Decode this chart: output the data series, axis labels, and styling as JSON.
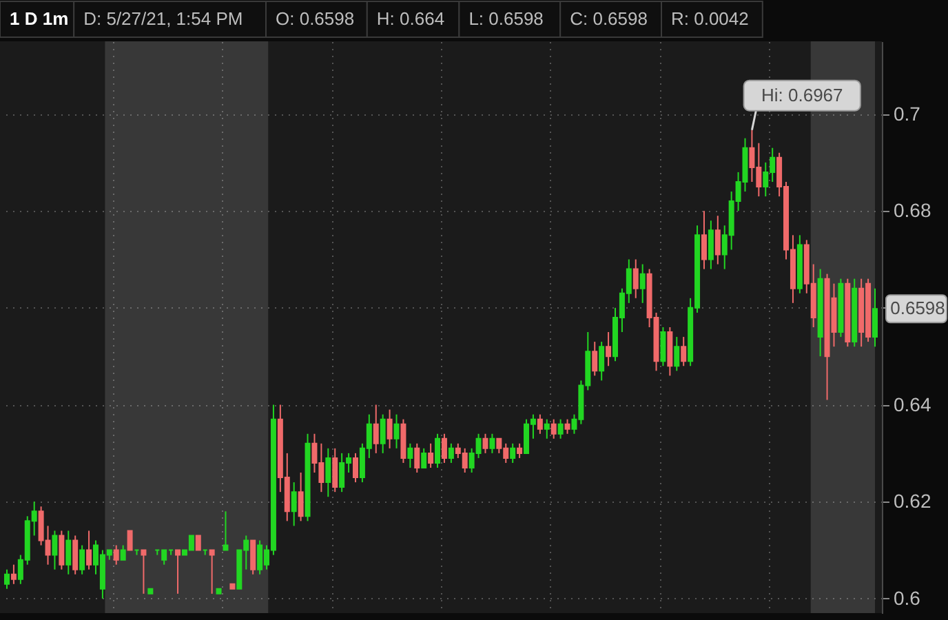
{
  "chart_data": {
    "type": "candlestick",
    "title": "1 D 1m",
    "annotations": [
      "D: 5/27/21, 1:54 PM",
      "O: 0.6598",
      "H: 0.664",
      "L: 0.6598",
      "C: 0.6598",
      "R: 0.0042",
      "Hi: 0.6967",
      {
        "text": "0.6598",
        "y": 0.6598
      }
    ],
    "categories": [
      null,
      null,
      null,
      null,
      null,
      null,
      null,
      null,
      null,
      null,
      null,
      null,
      null,
      null,
      null,
      null,
      null,
      null,
      null,
      null,
      null,
      null,
      null,
      null,
      null,
      null,
      null,
      null,
      null,
      null,
      null,
      null,
      null,
      null,
      null,
      null,
      null,
      null,
      null,
      null,
      null,
      null,
      null,
      null,
      null,
      null,
      null,
      null,
      null,
      null,
      null,
      null,
      null,
      null,
      null,
      null,
      null,
      null,
      null,
      null,
      null,
      null,
      null,
      null,
      null,
      null,
      null,
      null,
      null,
      null,
      null,
      null,
      null,
      null,
      null,
      null,
      null,
      null,
      null,
      null,
      null,
      null,
      null,
      null,
      null,
      null,
      null,
      null,
      null,
      null,
      null,
      null,
      null,
      null,
      null,
      null,
      null,
      null,
      null,
      null,
      null,
      null,
      null,
      null,
      null,
      null,
      null,
      null,
      null,
      null,
      null,
      null,
      null,
      null,
      null,
      null,
      null,
      null,
      null,
      null,
      null,
      null,
      null,
      null,
      null,
      null,
      null,
      null
    ],
    "ohlc": [
      [
        0.603,
        0.606,
        0.602,
        0.605
      ],
      [
        0.605,
        0.607,
        0.603,
        0.604
      ],
      [
        0.604,
        0.609,
        0.603,
        0.608
      ],
      [
        0.608,
        0.617,
        0.607,
        0.616
      ],
      [
        0.616,
        0.62,
        0.613,
        0.618
      ],
      [
        0.618,
        0.619,
        0.611,
        0.612
      ],
      [
        0.612,
        0.615,
        0.607,
        0.609
      ],
      [
        0.609,
        0.614,
        0.606,
        0.613
      ],
      [
        0.613,
        0.614,
        0.606,
        0.607
      ],
      [
        0.607,
        0.614,
        0.605,
        0.612
      ],
      [
        0.612,
        0.613,
        0.605,
        0.606
      ],
      [
        0.606,
        0.611,
        0.605,
        0.61
      ],
      [
        0.61,
        0.614,
        0.606,
        0.607
      ],
      [
        0.607,
        0.612,
        0.605,
        0.611
      ],
      [
        0.602,
        0.61,
        0.6,
        0.609
      ],
      [
        0.609,
        0.61,
        0.608,
        0.61
      ],
      [
        0.61,
        0.611,
        0.607,
        0.608
      ],
      [
        0.608,
        0.611,
        0.608,
        0.61
      ],
      [
        0.614,
        0.614,
        0.61,
        0.61
      ],
      [
        0.61,
        0.61,
        0.609,
        0.61
      ],
      [
        0.61,
        0.61,
        0.601,
        0.609
      ],
      [
        0.601,
        0.602,
        0.601,
        0.602
      ],
      [
        0.61,
        0.61,
        0.609,
        0.61
      ],
      [
        0.608,
        0.61,
        0.607,
        0.61
      ],
      [
        0.61,
        0.61,
        0.609,
        0.61
      ],
      [
        0.61,
        0.61,
        0.601,
        0.609
      ],
      [
        0.609,
        0.61,
        0.609,
        0.61
      ],
      [
        0.61,
        0.613,
        0.61,
        0.613
      ],
      [
        0.613,
        0.613,
        0.61,
        0.61
      ],
      [
        0.61,
        0.61,
        0.609,
        0.61
      ],
      [
        0.61,
        0.61,
        0.601,
        0.609
      ],
      [
        0.601,
        0.602,
        0.601,
        0.602
      ],
      [
        0.61,
        0.618,
        0.61,
        0.611
      ],
      [
        0.603,
        0.603,
        0.602,
        0.602
      ],
      [
        0.602,
        0.61,
        0.602,
        0.61
      ],
      [
        0.61,
        0.613,
        0.606,
        0.612
      ],
      [
        0.612,
        0.612,
        0.605,
        0.606
      ],
      [
        0.606,
        0.612,
        0.605,
        0.611
      ],
      [
        0.607,
        0.611,
        0.606,
        0.61
      ],
      [
        0.61,
        0.64,
        0.609,
        0.637
      ],
      [
        0.637,
        0.64,
        0.622,
        0.625
      ],
      [
        0.625,
        0.63,
        0.616,
        0.618
      ],
      [
        0.618,
        0.624,
        0.615,
        0.622
      ],
      [
        0.622,
        0.626,
        0.616,
        0.617
      ],
      [
        0.617,
        0.634,
        0.616,
        0.632
      ],
      [
        0.632,
        0.634,
        0.626,
        0.628
      ],
      [
        0.628,
        0.632,
        0.622,
        0.624
      ],
      [
        0.624,
        0.631,
        0.621,
        0.629
      ],
      [
        0.629,
        0.631,
        0.622,
        0.623
      ],
      [
        0.623,
        0.63,
        0.622,
        0.628
      ],
      [
        0.628,
        0.63,
        0.626,
        0.629
      ],
      [
        0.629,
        0.63,
        0.624,
        0.625
      ],
      [
        0.625,
        0.632,
        0.624,
        0.631
      ],
      [
        0.631,
        0.638,
        0.629,
        0.636
      ],
      [
        0.636,
        0.64,
        0.63,
        0.632
      ],
      [
        0.632,
        0.638,
        0.63,
        0.637
      ],
      [
        0.637,
        0.639,
        0.631,
        0.633
      ],
      [
        0.633,
        0.638,
        0.631,
        0.636
      ],
      [
        0.636,
        0.637,
        0.628,
        0.629
      ],
      [
        0.629,
        0.632,
        0.627,
        0.631
      ],
      [
        0.631,
        0.632,
        0.626,
        0.627
      ],
      [
        0.627,
        0.631,
        0.627,
        0.63
      ],
      [
        0.63,
        0.632,
        0.627,
        0.628
      ],
      [
        0.628,
        0.634,
        0.627,
        0.633
      ],
      [
        0.633,
        0.634,
        0.628,
        0.629
      ],
      [
        0.629,
        0.632,
        0.628,
        0.631
      ],
      [
        0.631,
        0.632,
        0.629,
        0.63
      ],
      [
        0.63,
        0.631,
        0.626,
        0.627
      ],
      [
        0.627,
        0.631,
        0.626,
        0.63
      ],
      [
        0.63,
        0.634,
        0.629,
        0.633
      ],
      [
        0.633,
        0.634,
        0.63,
        0.631
      ],
      [
        0.631,
        0.634,
        0.63,
        0.633
      ],
      [
        0.633,
        0.633,
        0.63,
        0.631
      ],
      [
        0.631,
        0.632,
        0.628,
        0.629
      ],
      [
        0.629,
        0.632,
        0.628,
        0.631
      ],
      [
        0.631,
        0.632,
        0.629,
        0.63
      ],
      [
        0.63,
        0.637,
        0.63,
        0.636
      ],
      [
        0.636,
        0.638,
        0.633,
        0.637
      ],
      [
        0.637,
        0.638,
        0.634,
        0.635
      ],
      [
        0.635,
        0.637,
        0.633,
        0.636
      ],
      [
        0.636,
        0.637,
        0.633,
        0.634
      ],
      [
        0.634,
        0.637,
        0.633,
        0.636
      ],
      [
        0.636,
        0.637,
        0.634,
        0.635
      ],
      [
        0.635,
        0.638,
        0.634,
        0.637
      ],
      [
        0.637,
        0.645,
        0.636,
        0.644
      ],
      [
        0.644,
        0.655,
        0.643,
        0.651
      ],
      [
        0.651,
        0.653,
        0.646,
        0.647
      ],
      [
        0.647,
        0.653,
        0.645,
        0.652
      ],
      [
        0.652,
        0.655,
        0.648,
        0.65
      ],
      [
        0.65,
        0.66,
        0.649,
        0.658
      ],
      [
        0.658,
        0.664,
        0.655,
        0.663
      ],
      [
        0.663,
        0.67,
        0.661,
        0.668
      ],
      [
        0.668,
        0.67,
        0.662,
        0.664
      ],
      [
        0.664,
        0.669,
        0.661,
        0.667
      ],
      [
        0.667,
        0.668,
        0.656,
        0.658
      ],
      [
        0.658,
        0.659,
        0.647,
        0.649
      ],
      [
        0.649,
        0.656,
        0.648,
        0.655
      ],
      [
        0.655,
        0.656,
        0.646,
        0.648
      ],
      [
        0.648,
        0.654,
        0.647,
        0.652
      ],
      [
        0.652,
        0.654,
        0.648,
        0.649
      ],
      [
        0.649,
        0.662,
        0.648,
        0.66
      ],
      [
        0.66,
        0.677,
        0.659,
        0.675
      ],
      [
        0.675,
        0.68,
        0.668,
        0.67
      ],
      [
        0.67,
        0.678,
        0.668,
        0.676
      ],
      [
        0.676,
        0.679,
        0.669,
        0.671
      ],
      [
        0.671,
        0.677,
        0.668,
        0.675
      ],
      [
        0.675,
        0.684,
        0.672,
        0.682
      ],
      [
        0.682,
        0.688,
        0.68,
        0.686
      ],
      [
        0.686,
        0.695,
        0.684,
        0.693
      ],
      [
        0.693,
        0.6967,
        0.686,
        0.689
      ],
      [
        0.689,
        0.694,
        0.683,
        0.685
      ],
      [
        0.685,
        0.69,
        0.683,
        0.688
      ],
      [
        0.688,
        0.693,
        0.686,
        0.691
      ],
      [
        0.691,
        0.692,
        0.683,
        0.685
      ],
      [
        0.685,
        0.686,
        0.67,
        0.672
      ],
      [
        0.672,
        0.675,
        0.661,
        0.664
      ],
      [
        0.664,
        0.675,
        0.663,
        0.673
      ],
      [
        0.673,
        0.674,
        0.663,
        0.665
      ],
      [
        0.665,
        0.669,
        0.656,
        0.658
      ],
      [
        0.654,
        0.668,
        0.65,
        0.666
      ],
      [
        0.666,
        0.667,
        0.641,
        0.65
      ],
      [
        0.662,
        0.665,
        0.652,
        0.655
      ],
      [
        0.655,
        0.666,
        0.654,
        0.665
      ],
      [
        0.665,
        0.666,
        0.652,
        0.653
      ],
      [
        0.653,
        0.666,
        0.652,
        0.664
      ],
      [
        0.664,
        0.666,
        0.652,
        0.655
      ],
      [
        0.665,
        0.666,
        0.653,
        0.654
      ],
      [
        0.654,
        0.664,
        0.652,
        0.6598
      ]
    ],
    "colors": [
      "#22d622",
      "#f06a6a",
      "#22d622",
      "#22d622",
      "#22d622",
      "#f06a6a",
      "#f06a6a",
      "#22d622",
      "#f06a6a",
      "#22d622",
      "#f06a6a",
      "#22d622",
      "#f06a6a",
      "#22d622",
      "#22d622",
      "#22d622",
      "#f06a6a",
      "#22d622",
      "#f06a6a",
      "#22d622",
      "#f06a6a",
      "#22d622",
      "#22d622",
      "#22d622",
      "#22d622",
      "#f06a6a",
      "#22d622",
      "#22d622",
      "#f06a6a",
      "#22d622",
      "#f06a6a",
      "#22d622",
      "#22d622",
      "#f06a6a",
      "#22d622",
      "#22d622",
      "#f06a6a",
      "#22d622",
      "#22d622",
      "#22d622",
      "#f06a6a",
      "#f06a6a",
      "#22d622",
      "#f06a6a",
      "#22d622",
      "#f06a6a",
      "#f06a6a",
      "#22d622",
      "#f06a6a",
      "#22d622",
      "#22d622",
      "#f06a6a",
      "#22d622",
      "#22d622",
      "#f06a6a",
      "#22d622",
      "#f06a6a",
      "#22d622",
      "#f06a6a",
      "#22d622",
      "#f06a6a",
      "#22d622",
      "#f06a6a",
      "#22d622",
      "#f06a6a",
      "#22d622",
      "#f06a6a",
      "#f06a6a",
      "#22d622",
      "#22d622",
      "#f06a6a",
      "#22d622",
      "#f06a6a",
      "#f06a6a",
      "#22d622",
      "#f06a6a",
      "#22d622",
      "#22d622",
      "#f06a6a",
      "#22d622",
      "#f06a6a",
      "#22d622",
      "#f06a6a",
      "#22d622",
      "#22d622",
      "#22d622",
      "#f06a6a",
      "#22d622",
      "#f06a6a",
      "#22d622",
      "#22d622",
      "#22d622",
      "#f06a6a",
      "#22d622",
      "#f06a6a",
      "#f06a6a",
      "#22d622",
      "#f06a6a",
      "#22d622",
      "#f06a6a",
      "#22d622",
      "#22d622",
      "#f06a6a",
      "#22d622",
      "#f06a6a",
      "#22d622",
      "#22d622",
      "#22d622",
      "#22d622",
      "#f06a6a",
      "#f06a6a",
      "#22d622",
      "#22d622",
      "#f06a6a",
      "#f06a6a",
      "#f06a6a",
      "#22d622",
      "#f06a6a",
      "#f06a6a",
      "#22d622",
      "#f06a6a",
      "#f06a6a",
      "#22d622",
      "#f06a6a",
      "#22d622",
      "#f06a6a",
      "#f06a6a",
      "#22d622"
    ],
    "ylim": [
      0.597,
      0.715
    ],
    "yticks": [
      0.6,
      0.62,
      0.64,
      {
        "value": 0.66,
        "label": null
      },
      0.68,
      0.7
    ],
    "grid": true,
    "tick_labels": "y"
  }
}
